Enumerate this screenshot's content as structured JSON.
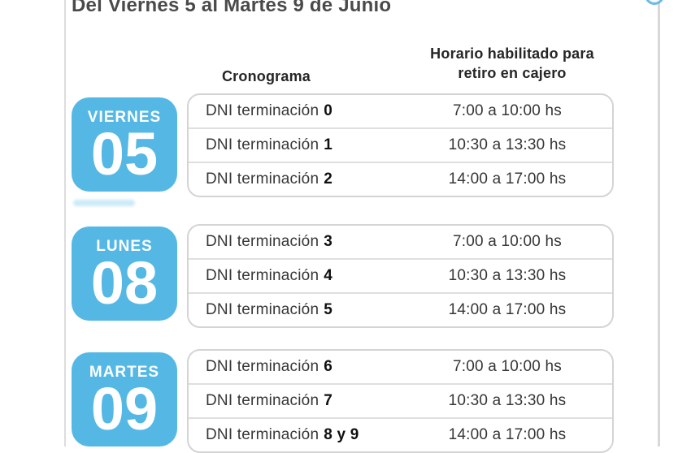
{
  "page": {
    "title": "Del Viernes 5 al Martes 9 de Junio"
  },
  "table_header": {
    "col1": "Cronograma",
    "col2_line1": "Horario habilitado para",
    "col2_line2": "retiro en cajero"
  },
  "colors": {
    "accent_blue": "#55b8e4",
    "title_gray": "#4a4a4a",
    "header_text": "#262626",
    "row_text": "#373737",
    "table_border": "#d4d4d4",
    "page_line": "#dcdcdc"
  },
  "icons": {
    "top_right": "partial-circle-icon"
  },
  "sections": [
    {
      "day_name": "VIERNES",
      "day_number": "05",
      "rows": [
        {
          "label": "DNI terminación",
          "digit": "0",
          "time": "7:00 a 10:00 hs"
        },
        {
          "label": "DNI terminación",
          "digit": "1",
          "time": "10:30 a 13:30 hs"
        },
        {
          "label": "DNI terminación",
          "digit": "2",
          "time": "14:00 a 17:00 hs"
        }
      ]
    },
    {
      "day_name": "LUNES",
      "day_number": "08",
      "rows": [
        {
          "label": "DNI terminación",
          "digit": "3",
          "time": "7:00 a 10:00 hs"
        },
        {
          "label": "DNI terminación",
          "digit": "4",
          "time": "10:30 a 13:30 hs"
        },
        {
          "label": "DNI terminación",
          "digit": "5",
          "time": "14:00 a 17:00 hs"
        }
      ]
    },
    {
      "day_name": "MARTES",
      "day_number": "09",
      "rows": [
        {
          "label": "DNI terminación",
          "digit": "6",
          "time": "7:00 a 10:00 hs"
        },
        {
          "label": "DNI terminación",
          "digit": "7",
          "time": "10:30 a 13:30 hs"
        },
        {
          "label": "DNI terminación",
          "digit": "8 y 9",
          "time": "14:00 a 17:00 hs"
        }
      ]
    }
  ]
}
